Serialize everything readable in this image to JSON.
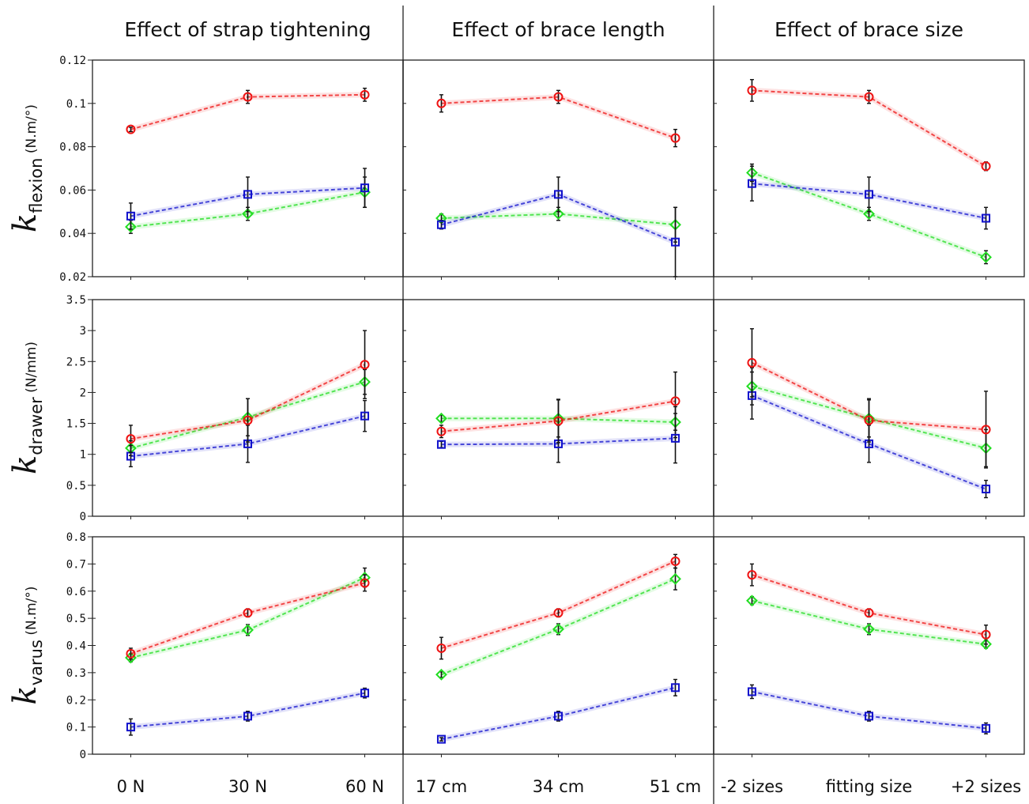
{
  "titles": [
    "Effect of strap tightening",
    "Effect of brace length",
    "Effect of brace size"
  ],
  "xticks": [
    [
      "0 N",
      "30 N",
      "60 N"
    ],
    [
      "17 cm",
      "34 cm",
      "51 cm"
    ],
    [
      "-2 sizes",
      "fitting size",
      "+2 sizes"
    ]
  ],
  "rows": [
    {
      "ylabel": {
        "k": "k",
        "sub": "flexion",
        "unit": " (N.m/°)"
      },
      "ylim": [
        0.02,
        0.12
      ],
      "ticks": [
        0.02,
        0.04,
        0.06,
        0.08,
        0.1,
        0.12
      ],
      "tick_labels": [
        "0.02",
        "0.04",
        "0.06",
        "0.08",
        "0.1",
        "0.12"
      ]
    },
    {
      "ylabel": {
        "k": "k",
        "sub": "drawer",
        "unit": " (N/mm)"
      },
      "ylim": [
        0,
        3.5
      ],
      "ticks": [
        0,
        0.5,
        1,
        1.5,
        2,
        2.5,
        3,
        3.5
      ],
      "tick_labels": [
        "0",
        "0.5",
        "1",
        "1.5",
        "2",
        "2.5",
        "3",
        "3.5"
      ]
    },
    {
      "ylabel": {
        "k": "k",
        "sub": "varus",
        "unit": " (N.m/°)"
      },
      "ylim": [
        0,
        0.8
      ],
      "ticks": [
        0,
        0.1,
        0.2,
        0.3,
        0.4,
        0.5,
        0.6,
        0.7,
        0.8
      ],
      "tick_labels": [
        "0",
        "0.1",
        "0.2",
        "0.3",
        "0.4",
        "0.5",
        "0.6",
        "0.7",
        "0.8"
      ]
    }
  ],
  "colors": {
    "red": "#ee1111",
    "green": "#22dd22",
    "blue": "#1111cc"
  },
  "chart_data": [
    {
      "type": "line",
      "row": 0,
      "col": 0,
      "categories": [
        "0 N",
        "30 N",
        "60 N"
      ],
      "series": [
        {
          "color": "red",
          "marker": "circle",
          "values": [
            0.088,
            0.103,
            0.104
          ],
          "err": [
            0.001,
            0.003,
            0.003
          ]
        },
        {
          "color": "green",
          "marker": "diamond",
          "values": [
            0.043,
            0.049,
            0.059
          ],
          "err": [
            0.003,
            0.003,
            0.007
          ]
        },
        {
          "color": "blue",
          "marker": "square",
          "values": [
            0.048,
            0.058,
            0.061
          ],
          "err": [
            0.006,
            0.008,
            0.009
          ]
        }
      ]
    },
    {
      "type": "line",
      "row": 0,
      "col": 1,
      "categories": [
        "17 cm",
        "34 cm",
        "51 cm"
      ],
      "series": [
        {
          "color": "red",
          "marker": "circle",
          "values": [
            0.1,
            0.103,
            0.084
          ],
          "err": [
            0.004,
            0.003,
            0.004
          ]
        },
        {
          "color": "green",
          "marker": "diamond",
          "values": [
            0.047,
            0.049,
            0.044
          ],
          "err": [
            0.002,
            0.003,
            0.008
          ]
        },
        {
          "color": "blue",
          "marker": "square",
          "values": [
            0.044,
            0.058,
            0.036
          ],
          "err": [
            0.002,
            0.008,
            0.016
          ]
        }
      ]
    },
    {
      "type": "line",
      "row": 0,
      "col": 2,
      "categories": [
        "-2 sizes",
        "fitting size",
        "+2 sizes"
      ],
      "series": [
        {
          "color": "red",
          "marker": "circle",
          "values": [
            0.106,
            0.103,
            0.071
          ],
          "err": [
            0.005,
            0.003,
            0.002
          ]
        },
        {
          "color": "green",
          "marker": "diamond",
          "values": [
            0.068,
            0.049,
            0.029
          ],
          "err": [
            0.004,
            0.003,
            0.003
          ]
        },
        {
          "color": "blue",
          "marker": "square",
          "values": [
            0.063,
            0.058,
            0.047
          ],
          "err": [
            0.008,
            0.008,
            0.005
          ]
        }
      ]
    },
    {
      "type": "line",
      "row": 1,
      "col": 0,
      "categories": [
        "0 N",
        "30 N",
        "60 N"
      ],
      "series": [
        {
          "color": "red",
          "marker": "circle",
          "values": [
            1.25,
            1.55,
            2.45
          ],
          "err": [
            0.22,
            0.35,
            0.55
          ]
        },
        {
          "color": "green",
          "marker": "diamond",
          "values": [
            1.1,
            1.6,
            2.17
          ],
          "err": [
            0.12,
            0.3,
            0.2
          ]
        },
        {
          "color": "blue",
          "marker": "square",
          "values": [
            0.97,
            1.17,
            1.62
          ],
          "err": [
            0.17,
            0.3,
            0.25
          ]
        }
      ]
    },
    {
      "type": "line",
      "row": 1,
      "col": 1,
      "categories": [
        "17 cm",
        "34 cm",
        "51 cm"
      ],
      "series": [
        {
          "color": "red",
          "marker": "circle",
          "values": [
            1.37,
            1.54,
            1.86
          ],
          "err": [
            0.1,
            0.35,
            0.47
          ]
        },
        {
          "color": "green",
          "marker": "diamond",
          "values": [
            1.58,
            1.58,
            1.52
          ],
          "err": [
            0.05,
            0.3,
            0.25
          ]
        },
        {
          "color": "blue",
          "marker": "square",
          "values": [
            1.16,
            1.17,
            1.26
          ],
          "err": [
            0.05,
            0.3,
            0.4
          ]
        }
      ]
    },
    {
      "type": "line",
      "row": 1,
      "col": 2,
      "categories": [
        "-2 sizes",
        "fitting size",
        "+2 sizes"
      ],
      "series": [
        {
          "color": "red",
          "marker": "circle",
          "values": [
            2.48,
            1.55,
            1.4
          ],
          "err": [
            0.55,
            0.35,
            0.62
          ]
        },
        {
          "color": "green",
          "marker": "diamond",
          "values": [
            2.1,
            1.58,
            1.1
          ],
          "err": [
            0.3,
            0.3,
            0.3
          ]
        },
        {
          "color": "blue",
          "marker": "square",
          "values": [
            1.95,
            1.17,
            0.44
          ],
          "err": [
            0.38,
            0.3,
            0.14
          ]
        }
      ]
    },
    {
      "type": "line",
      "row": 2,
      "col": 0,
      "categories": [
        "0 N",
        "30 N",
        "60 N"
      ],
      "series": [
        {
          "color": "red",
          "marker": "circle",
          "values": [
            0.37,
            0.52,
            0.63
          ],
          "err": [
            0.02,
            0.015,
            0.03
          ]
        },
        {
          "color": "green",
          "marker": "diamond",
          "values": [
            0.355,
            0.457,
            0.65
          ],
          "err": [
            0.015,
            0.02,
            0.035
          ]
        },
        {
          "color": "blue",
          "marker": "square",
          "values": [
            0.1,
            0.14,
            0.225
          ],
          "err": [
            0.03,
            0.018,
            0.018
          ]
        }
      ]
    },
    {
      "type": "line",
      "row": 2,
      "col": 1,
      "categories": [
        "17 cm",
        "34 cm",
        "51 cm"
      ],
      "series": [
        {
          "color": "red",
          "marker": "circle",
          "values": [
            0.39,
            0.52,
            0.71
          ],
          "err": [
            0.04,
            0.015,
            0.025
          ]
        },
        {
          "color": "green",
          "marker": "diamond",
          "values": [
            0.293,
            0.46,
            0.645
          ],
          "err": [
            0.01,
            0.02,
            0.04
          ]
        },
        {
          "color": "blue",
          "marker": "square",
          "values": [
            0.055,
            0.14,
            0.245
          ],
          "err": [
            0.006,
            0.018,
            0.03
          ]
        }
      ]
    },
    {
      "type": "line",
      "row": 2,
      "col": 2,
      "categories": [
        "-2 sizes",
        "fitting size",
        "+2 sizes"
      ],
      "series": [
        {
          "color": "red",
          "marker": "circle",
          "values": [
            0.66,
            0.52,
            0.44
          ],
          "err": [
            0.04,
            0.015,
            0.035
          ]
        },
        {
          "color": "green",
          "marker": "diamond",
          "values": [
            0.565,
            0.46,
            0.405
          ],
          "err": [
            0.015,
            0.02,
            0.015
          ]
        },
        {
          "color": "blue",
          "marker": "square",
          "values": [
            0.23,
            0.14,
            0.095
          ],
          "err": [
            0.025,
            0.018,
            0.02
          ]
        }
      ]
    }
  ]
}
